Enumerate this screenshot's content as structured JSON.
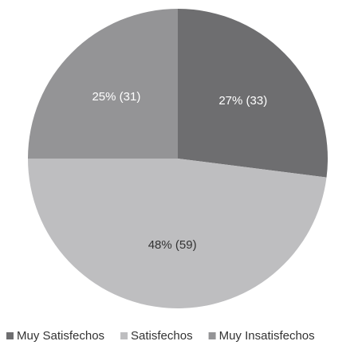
{
  "chart_data": {
    "type": "pie",
    "categories": [
      "Muy Satisfechos",
      "Satisfechos",
      "Muy Insatisfechos"
    ],
    "values": [
      27,
      48,
      25
    ],
    "value_labels": [
      "27% (33)",
      "48% (59)",
      "25% (31)"
    ],
    "colors": [
      "#6e6e70",
      "#bebec0",
      "#949496"
    ],
    "legend": "bottom"
  }
}
